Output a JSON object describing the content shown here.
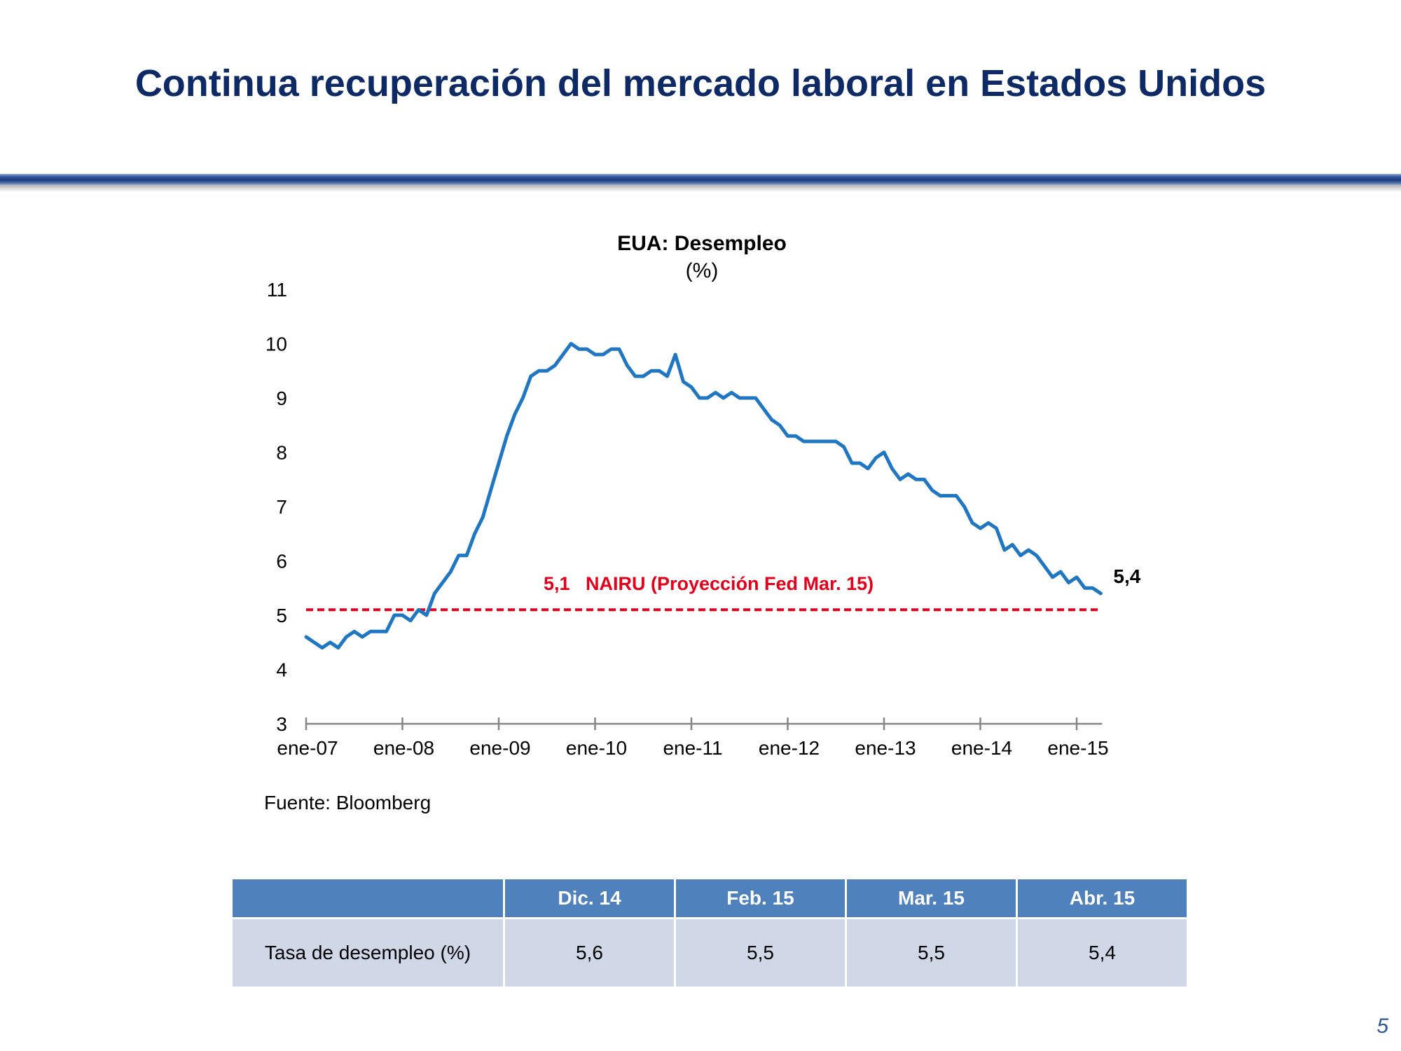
{
  "slide": {
    "title": "Continua recuperación del mercado laboral en Estados Unidos",
    "page_number": "5",
    "source": "Fuente: Bloomberg"
  },
  "colors": {
    "title": "#0d2a66",
    "series": "#1f77c4",
    "reference": "#e3001b",
    "table_header": "#4f81bd",
    "table_cell": "#d0d8e8"
  },
  "chart_data": {
    "type": "line",
    "title": "EUA: Desempleo",
    "subtitle": "(%)",
    "xlabel": "",
    "ylabel": "",
    "ylim": [
      3,
      11
    ],
    "yticks": [
      "3",
      "4",
      "5",
      "6",
      "7",
      "8",
      "9",
      "10",
      "11"
    ],
    "xticks": [
      "ene-07",
      "ene-08",
      "ene-09",
      "ene-10",
      "ene-11",
      "ene-12",
      "ene-13",
      "ene-14",
      "ene-15"
    ],
    "x_start": "ene-07",
    "x_frequency": "monthly",
    "grid": false,
    "series": [
      {
        "name": "",
        "values": [
          4.6,
          4.5,
          4.4,
          4.5,
          4.4,
          4.6,
          4.7,
          4.6,
          4.7,
          4.7,
          4.7,
          5.0,
          5.0,
          4.9,
          5.1,
          5.0,
          5.4,
          5.6,
          5.8,
          6.1,
          6.1,
          6.5,
          6.8,
          7.3,
          7.8,
          8.3,
          8.7,
          9.0,
          9.4,
          9.5,
          9.5,
          9.6,
          9.8,
          10.0,
          9.9,
          9.9,
          9.8,
          9.8,
          9.9,
          9.9,
          9.6,
          9.4,
          9.4,
          9.5,
          9.5,
          9.4,
          9.8,
          9.3,
          9.2,
          9.0,
          9.0,
          9.1,
          9.0,
          9.1,
          9.0,
          9.0,
          9.0,
          8.8,
          8.6,
          8.5,
          8.3,
          8.3,
          8.2,
          8.2,
          8.2,
          8.2,
          8.2,
          8.1,
          7.8,
          7.8,
          7.7,
          7.9,
          8.0,
          7.7,
          7.5,
          7.6,
          7.5,
          7.5,
          7.3,
          7.2,
          7.2,
          7.2,
          7.0,
          6.7,
          6.6,
          6.7,
          6.6,
          6.2,
          6.3,
          6.1,
          6.2,
          6.1,
          5.9,
          5.7,
          5.8,
          5.6,
          5.7,
          5.5,
          5.5,
          5.4
        ],
        "end_label": "5,4"
      }
    ],
    "reference_line": {
      "value": 5.1,
      "label_value": "5,1",
      "label_text": "NAIRU (Proyección Fed Mar. 15)"
    }
  },
  "table": {
    "headers": [
      "",
      "Dic. 14",
      "Feb. 15",
      "Mar. 15",
      "Abr. 15"
    ],
    "rows": [
      {
        "label": "Tasa de desempleo (%)",
        "values": [
          "5,6",
          "5,5",
          "5,5",
          "5,4"
        ]
      }
    ]
  }
}
